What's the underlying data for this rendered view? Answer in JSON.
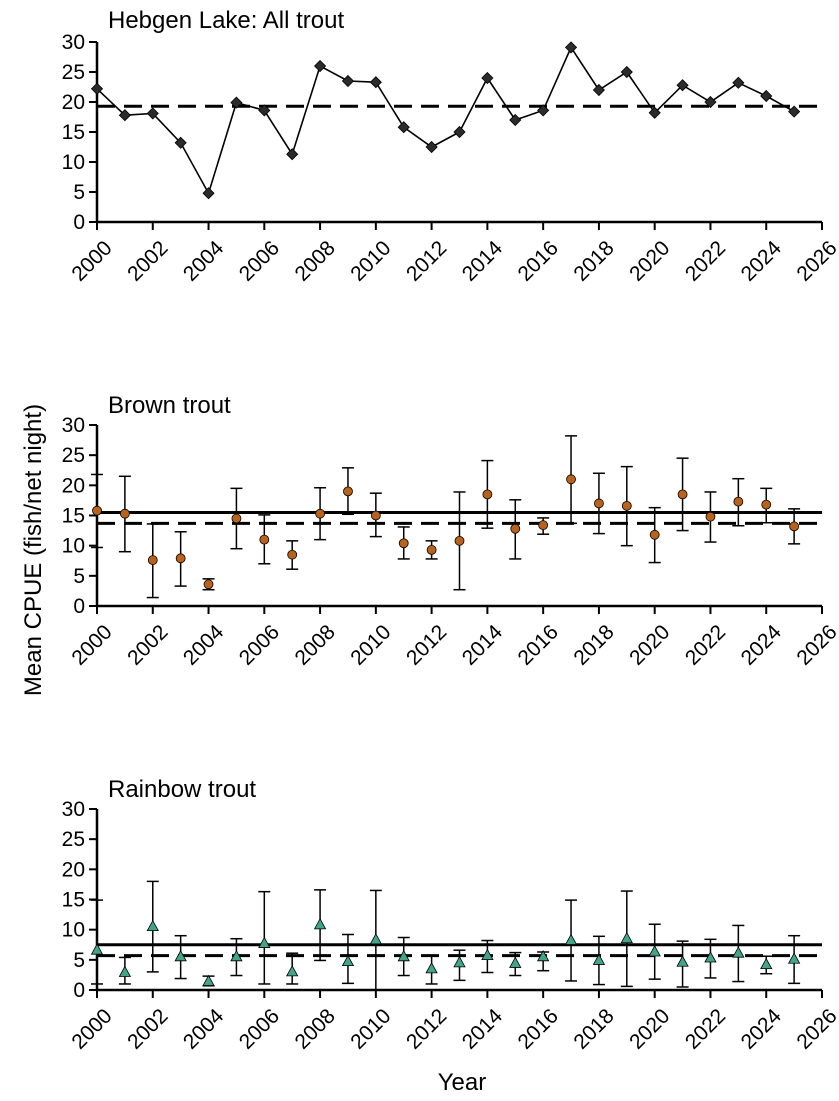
{
  "chart_data": [
    {
      "type": "line",
      "title": "Hebgen Lake: All trout",
      "x": [
        2000,
        2001,
        2002,
        2003,
        2004,
        2005,
        2006,
        2007,
        2008,
        2009,
        2010,
        2011,
        2012,
        2013,
        2014,
        2015,
        2016,
        2017,
        2018,
        2019,
        2020,
        2021,
        2022,
        2023,
        2024,
        2025
      ],
      "series": [
        {
          "values": [
            22.2,
            17.8,
            18.1,
            13.2,
            4.8,
            19.9,
            18.6,
            11.3,
            26.0,
            23.5,
            23.3,
            15.8,
            12.5,
            15.0,
            24.0,
            17.0,
            18.6,
            29.1,
            22.0,
            25.0,
            18.2,
            22.8,
            20.0,
            23.2,
            21.0,
            18.4
          ],
          "marker": "diamond",
          "color": "#2b2b2b"
        }
      ],
      "reference_lines": [
        {
          "style": "dashed",
          "y": 19.3
        }
      ],
      "xlim": [
        2000,
        2026
      ],
      "ylim": [
        0,
        30
      ],
      "xticks": [
        "2000",
        "2002",
        "2004",
        "2006",
        "2008",
        "2010",
        "2012",
        "2014",
        "2016",
        "2018",
        "2020",
        "2022",
        "2024",
        "2026"
      ],
      "yticks": [
        "0",
        "5",
        "10",
        "15",
        "20",
        "25",
        "30"
      ],
      "grid": false
    },
    {
      "type": "scatter",
      "title": "Brown trout",
      "x": [
        2000,
        2001,
        2002,
        2003,
        2004,
        2005,
        2006,
        2007,
        2008,
        2009,
        2010,
        2011,
        2012,
        2013,
        2014,
        2015,
        2016,
        2017,
        2018,
        2019,
        2020,
        2021,
        2022,
        2023,
        2024,
        2025
      ],
      "series": [
        {
          "values": [
            15.8,
            15.3,
            7.6,
            7.9,
            3.6,
            14.5,
            11.0,
            8.5,
            15.3,
            19.0,
            15.0,
            10.4,
            9.3,
            10.8,
            18.5,
            12.8,
            13.4,
            21.0,
            17.0,
            16.6,
            11.8,
            18.5,
            14.8,
            17.3,
            16.8,
            13.2
          ],
          "error_low": [
            9.7,
            9.0,
            1.4,
            3.3,
            2.7,
            9.5,
            7.0,
            6.1,
            11.0,
            15.2,
            11.5,
            7.8,
            7.8,
            2.7,
            12.9,
            7.8,
            11.9,
            13.7,
            12.0,
            10.0,
            7.2,
            12.5,
            10.6,
            13.3,
            13.8,
            10.3
          ],
          "error_high": [
            21.8,
            21.5,
            13.6,
            12.3,
            4.5,
            19.5,
            15.1,
            10.8,
            19.6,
            22.9,
            18.7,
            13.1,
            10.8,
            18.9,
            24.1,
            17.6,
            14.6,
            28.2,
            22.0,
            23.1,
            16.3,
            24.5,
            18.9,
            21.1,
            19.5,
            16.1
          ],
          "marker": "circle",
          "color": "#b8621b"
        }
      ],
      "reference_lines": [
        {
          "style": "solid",
          "y": 15.5
        },
        {
          "style": "dashed",
          "y": 13.7
        }
      ],
      "xlim": [
        2000,
        2026
      ],
      "ylim": [
        0,
        30
      ],
      "xticks": [
        "2000",
        "2002",
        "2004",
        "2006",
        "2008",
        "2010",
        "2012",
        "2014",
        "2016",
        "2018",
        "2020",
        "2022",
        "2024",
        "2026"
      ],
      "yticks": [
        "0",
        "5",
        "10",
        "15",
        "20",
        "25",
        "30"
      ],
      "grid": false
    },
    {
      "type": "scatter",
      "title": "Rainbow trout",
      "x": [
        2000,
        2001,
        2002,
        2003,
        2004,
        2005,
        2006,
        2007,
        2008,
        2009,
        2010,
        2011,
        2012,
        2013,
        2014,
        2015,
        2016,
        2017,
        2018,
        2019,
        2020,
        2021,
        2022,
        2023,
        2024,
        2025
      ],
      "series": [
        {
          "values": [
            6.6,
            2.9,
            10.5,
            5.5,
            1.4,
            5.5,
            7.7,
            3.0,
            10.8,
            4.7,
            8.3,
            5.5,
            3.5,
            4.5,
            5.7,
            4.4,
            5.5,
            8.2,
            4.9,
            8.5,
            6.3,
            4.6,
            5.3,
            6.1,
            4.2,
            5.1
          ],
          "error_low": [
            1.0,
            1.0,
            3.0,
            1.9,
            0.7,
            2.4,
            1.0,
            1.0,
            4.9,
            1.1,
            0.0,
            2.4,
            1.0,
            1.6,
            2.9,
            2.4,
            3.2,
            1.5,
            0.9,
            0.6,
            1.8,
            0.5,
            2.0,
            1.4,
            2.7,
            1.1
          ],
          "error_high": [
            14.9,
            5.4,
            18.0,
            9.0,
            2.3,
            8.5,
            16.3,
            6.1,
            16.6,
            9.2,
            16.5,
            8.7,
            5.7,
            6.6,
            8.2,
            6.2,
            6.3,
            14.9,
            8.9,
            16.4,
            10.9,
            8.1,
            8.4,
            10.7,
            5.6,
            9.0
          ],
          "marker": "triangle",
          "color": "#44a487"
        }
      ],
      "reference_lines": [
        {
          "style": "solid",
          "y": 7.5
        },
        {
          "style": "dashed",
          "y": 5.7
        }
      ],
      "xlim": [
        2000,
        2026
      ],
      "ylim": [
        0,
        30
      ],
      "xticks": [
        "2000",
        "2002",
        "2004",
        "2006",
        "2008",
        "2010",
        "2012",
        "2014",
        "2016",
        "2018",
        "2020",
        "2022",
        "2024",
        "2026"
      ],
      "yticks": [
        "0",
        "5",
        "10",
        "15",
        "20",
        "25",
        "30"
      ],
      "grid": false
    }
  ],
  "axes": {
    "ylabel": "Mean CPUE (fish/net night)",
    "xlabel": "Year"
  }
}
